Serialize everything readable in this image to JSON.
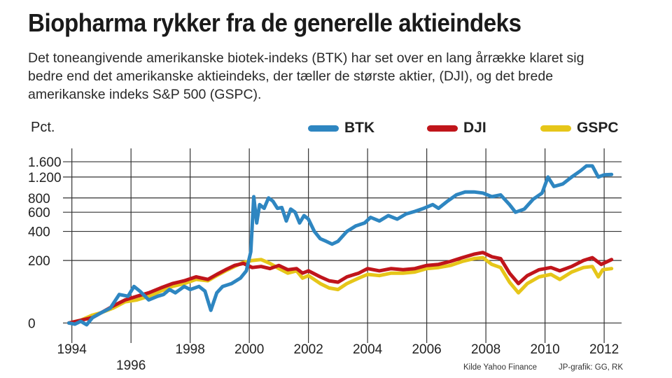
{
  "header": {
    "title": "Biopharma rykker fra de generelle aktieindeks",
    "subtitle": "Det toneangivende amerikanske biotek-indeks (BTK) har set over en lang årrække klaret sig bedre end det amerikanske aktieindeks, der tæller de største aktier, (DJI), og det brede amerikanske indeks S&P 500 (GSPC)."
  },
  "footer": {
    "source": "Kilde Yahoo Finance",
    "credit": "JP-grafik: GG, RK"
  },
  "colors": {
    "BTK": "#2e86c1",
    "DJI": "#c0151b",
    "GSPC": "#e6c619",
    "grid": "#333333"
  },
  "chart_data": {
    "type": "line",
    "ylabel": "Pct.",
    "yscale": "log (1 + pct/100)",
    "xlim": [
      1993.7,
      2012.4
    ],
    "ylim": [
      -10,
      1800
    ],
    "y_ticks": [
      {
        "value": 0,
        "label": "0"
      },
      {
        "value": 200,
        "label": "200"
      },
      {
        "value": 400,
        "label": "400"
      },
      {
        "value": 600,
        "label": "600"
      },
      {
        "value": 800,
        "label": "800"
      },
      {
        "value": 1200,
        "label": "1.200"
      },
      {
        "value": 1600,
        "label": "1.600"
      }
    ],
    "x_ticks": [
      {
        "value": 1994,
        "label": "1994",
        "row": 1
      },
      {
        "value": 1996,
        "label": "1996",
        "row": 2
      },
      {
        "value": 1998,
        "label": "1998",
        "row": 1
      },
      {
        "value": 2000,
        "label": "2000",
        "row": 1
      },
      {
        "value": 2002,
        "label": "2002",
        "row": 1
      },
      {
        "value": 2004,
        "label": "2004",
        "row": 1
      },
      {
        "value": 2006,
        "label": "2006",
        "row": 1
      },
      {
        "value": 2008,
        "label": "2008",
        "row": 1
      },
      {
        "value": 2010,
        "label": "2010",
        "row": 1
      },
      {
        "value": 2012,
        "label": "2012",
        "row": 1
      }
    ],
    "series": [
      {
        "name": "BTK",
        "color": "#2e86c1",
        "points": [
          [
            1993.9,
            0
          ],
          [
            1994.1,
            -2
          ],
          [
            1994.3,
            3
          ],
          [
            1994.5,
            -3
          ],
          [
            1994.7,
            10
          ],
          [
            1995.0,
            20
          ],
          [
            1995.3,
            30
          ],
          [
            1995.6,
            65
          ],
          [
            1995.9,
            60
          ],
          [
            1996.1,
            90
          ],
          [
            1996.3,
            75
          ],
          [
            1996.6,
            50
          ],
          [
            1996.9,
            60
          ],
          [
            1997.1,
            65
          ],
          [
            1997.3,
            80
          ],
          [
            1997.5,
            70
          ],
          [
            1997.8,
            90
          ],
          [
            1998.0,
            80
          ],
          [
            1998.3,
            90
          ],
          [
            1998.5,
            75
          ],
          [
            1998.7,
            25
          ],
          [
            1998.9,
            70
          ],
          [
            1999.1,
            90
          ],
          [
            1999.4,
            100
          ],
          [
            1999.7,
            120
          ],
          [
            1999.9,
            150
          ],
          [
            2000.05,
            250
          ],
          [
            2000.15,
            820
          ],
          [
            2000.25,
            480
          ],
          [
            2000.35,
            700
          ],
          [
            2000.5,
            650
          ],
          [
            2000.65,
            800
          ],
          [
            2000.8,
            750
          ],
          [
            2000.95,
            650
          ],
          [
            2001.1,
            660
          ],
          [
            2001.25,
            500
          ],
          [
            2001.4,
            640
          ],
          [
            2001.55,
            600
          ],
          [
            2001.7,
            480
          ],
          [
            2001.85,
            560
          ],
          [
            2002.0,
            520
          ],
          [
            2002.2,
            400
          ],
          [
            2002.4,
            340
          ],
          [
            2002.6,
            320
          ],
          [
            2002.8,
            300
          ],
          [
            2003.0,
            320
          ],
          [
            2003.3,
            400
          ],
          [
            2003.6,
            450
          ],
          [
            2003.9,
            480
          ],
          [
            2004.1,
            540
          ],
          [
            2004.4,
            500
          ],
          [
            2004.7,
            560
          ],
          [
            2005.0,
            520
          ],
          [
            2005.3,
            580
          ],
          [
            2005.6,
            610
          ],
          [
            2005.9,
            650
          ],
          [
            2006.2,
            700
          ],
          [
            2006.4,
            650
          ],
          [
            2006.7,
            750
          ],
          [
            2007.0,
            850
          ],
          [
            2007.3,
            900
          ],
          [
            2007.6,
            900
          ],
          [
            2007.9,
            880
          ],
          [
            2008.2,
            820
          ],
          [
            2008.5,
            850
          ],
          [
            2008.8,
            700
          ],
          [
            2009.0,
            600
          ],
          [
            2009.3,
            640
          ],
          [
            2009.6,
            780
          ],
          [
            2009.9,
            880
          ],
          [
            2010.1,
            1200
          ],
          [
            2010.3,
            1000
          ],
          [
            2010.6,
            1050
          ],
          [
            2010.9,
            1200
          ],
          [
            2011.2,
            1350
          ],
          [
            2011.4,
            1480
          ],
          [
            2011.6,
            1480
          ],
          [
            2011.8,
            1200
          ],
          [
            2012.0,
            1250
          ],
          [
            2012.25,
            1260
          ]
        ]
      },
      {
        "name": "DJI",
        "color": "#c0151b",
        "points": [
          [
            1993.9,
            0
          ],
          [
            1994.3,
            5
          ],
          [
            1994.7,
            10
          ],
          [
            1995.0,
            20
          ],
          [
            1995.4,
            35
          ],
          [
            1995.8,
            50
          ],
          [
            1996.2,
            60
          ],
          [
            1996.6,
            70
          ],
          [
            1997.0,
            85
          ],
          [
            1997.4,
            100
          ],
          [
            1997.8,
            110
          ],
          [
            1998.2,
            125
          ],
          [
            1998.6,
            115
          ],
          [
            1998.9,
            135
          ],
          [
            1999.2,
            155
          ],
          [
            1999.5,
            175
          ],
          [
            1999.8,
            185
          ],
          [
            2000.1,
            165
          ],
          [
            2000.4,
            170
          ],
          [
            2000.7,
            160
          ],
          [
            2001.0,
            175
          ],
          [
            2001.3,
            155
          ],
          [
            2001.6,
            160
          ],
          [
            2001.8,
            140
          ],
          [
            2002.0,
            150
          ],
          [
            2002.4,
            125
          ],
          [
            2002.7,
            110
          ],
          [
            2003.0,
            105
          ],
          [
            2003.3,
            125
          ],
          [
            2003.7,
            140
          ],
          [
            2004.0,
            160
          ],
          [
            2004.4,
            150
          ],
          [
            2004.8,
            160
          ],
          [
            2005.2,
            155
          ],
          [
            2005.6,
            160
          ],
          [
            2006.0,
            175
          ],
          [
            2006.4,
            180
          ],
          [
            2006.8,
            195
          ],
          [
            2007.2,
            215
          ],
          [
            2007.6,
            235
          ],
          [
            2007.9,
            245
          ],
          [
            2008.2,
            220
          ],
          [
            2008.5,
            210
          ],
          [
            2008.8,
            140
          ],
          [
            2009.1,
            100
          ],
          [
            2009.4,
            130
          ],
          [
            2009.8,
            155
          ],
          [
            2010.2,
            165
          ],
          [
            2010.5,
            150
          ],
          [
            2010.9,
            170
          ],
          [
            2011.3,
            200
          ],
          [
            2011.6,
            215
          ],
          [
            2011.9,
            180
          ],
          [
            2012.25,
            205
          ]
        ]
      },
      {
        "name": "GSPC",
        "color": "#e6c619",
        "points": [
          [
            1993.9,
            0
          ],
          [
            1994.3,
            5
          ],
          [
            1994.7,
            15
          ],
          [
            1995.0,
            20
          ],
          [
            1995.4,
            30
          ],
          [
            1995.8,
            45
          ],
          [
            1996.2,
            50
          ],
          [
            1996.6,
            60
          ],
          [
            1997.0,
            75
          ],
          [
            1997.4,
            90
          ],
          [
            1997.8,
            100
          ],
          [
            1998.2,
            115
          ],
          [
            1998.6,
            110
          ],
          [
            1998.9,
            130
          ],
          [
            1999.2,
            150
          ],
          [
            1999.5,
            170
          ],
          [
            1999.8,
            190
          ],
          [
            2000.1,
            200
          ],
          [
            2000.4,
            205
          ],
          [
            2000.7,
            185
          ],
          [
            2001.0,
            160
          ],
          [
            2001.3,
            140
          ],
          [
            2001.6,
            150
          ],
          [
            2001.8,
            120
          ],
          [
            2002.0,
            130
          ],
          [
            2002.4,
            100
          ],
          [
            2002.7,
            85
          ],
          [
            2003.0,
            80
          ],
          [
            2003.3,
            100
          ],
          [
            2003.7,
            120
          ],
          [
            2004.0,
            135
          ],
          [
            2004.4,
            130
          ],
          [
            2004.8,
            140
          ],
          [
            2005.2,
            140
          ],
          [
            2005.6,
            145
          ],
          [
            2006.0,
            160
          ],
          [
            2006.4,
            165
          ],
          [
            2006.8,
            175
          ],
          [
            2007.2,
            195
          ],
          [
            2007.6,
            210
          ],
          [
            2007.9,
            215
          ],
          [
            2008.2,
            180
          ],
          [
            2008.5,
            165
          ],
          [
            2008.8,
            105
          ],
          [
            2009.1,
            70
          ],
          [
            2009.4,
            100
          ],
          [
            2009.8,
            125
          ],
          [
            2010.2,
            135
          ],
          [
            2010.5,
            115
          ],
          [
            2010.9,
            145
          ],
          [
            2011.3,
            165
          ],
          [
            2011.6,
            170
          ],
          [
            2011.8,
            125
          ],
          [
            2011.95,
            155
          ],
          [
            2012.25,
            160
          ]
        ]
      }
    ]
  }
}
